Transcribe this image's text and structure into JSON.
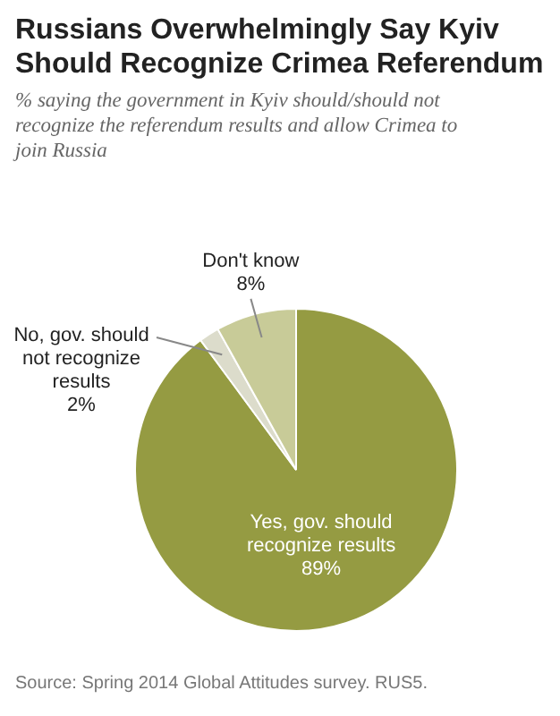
{
  "chart_data": {
    "type": "pie",
    "title": "Russians Overwhelmingly Say Kyiv Should Recognize Crimea Referendum",
    "subtitle": "% saying the government in Kyiv should/should not recognize the referendum results and allow Crimea to join Russia",
    "categories": [
      "Yes, gov. should recognize results",
      "No, gov. should not recognize results",
      "Don't know"
    ],
    "values": [
      89,
      2,
      8
    ],
    "colors": [
      "#959b42",
      "#dcdccb",
      "#c8cb98"
    ],
    "value_labels": [
      "89%",
      "2%",
      "8%"
    ],
    "annotations": [
      "Source: Spring 2014 Global Attitudes survey. RUS5."
    ]
  }
}
